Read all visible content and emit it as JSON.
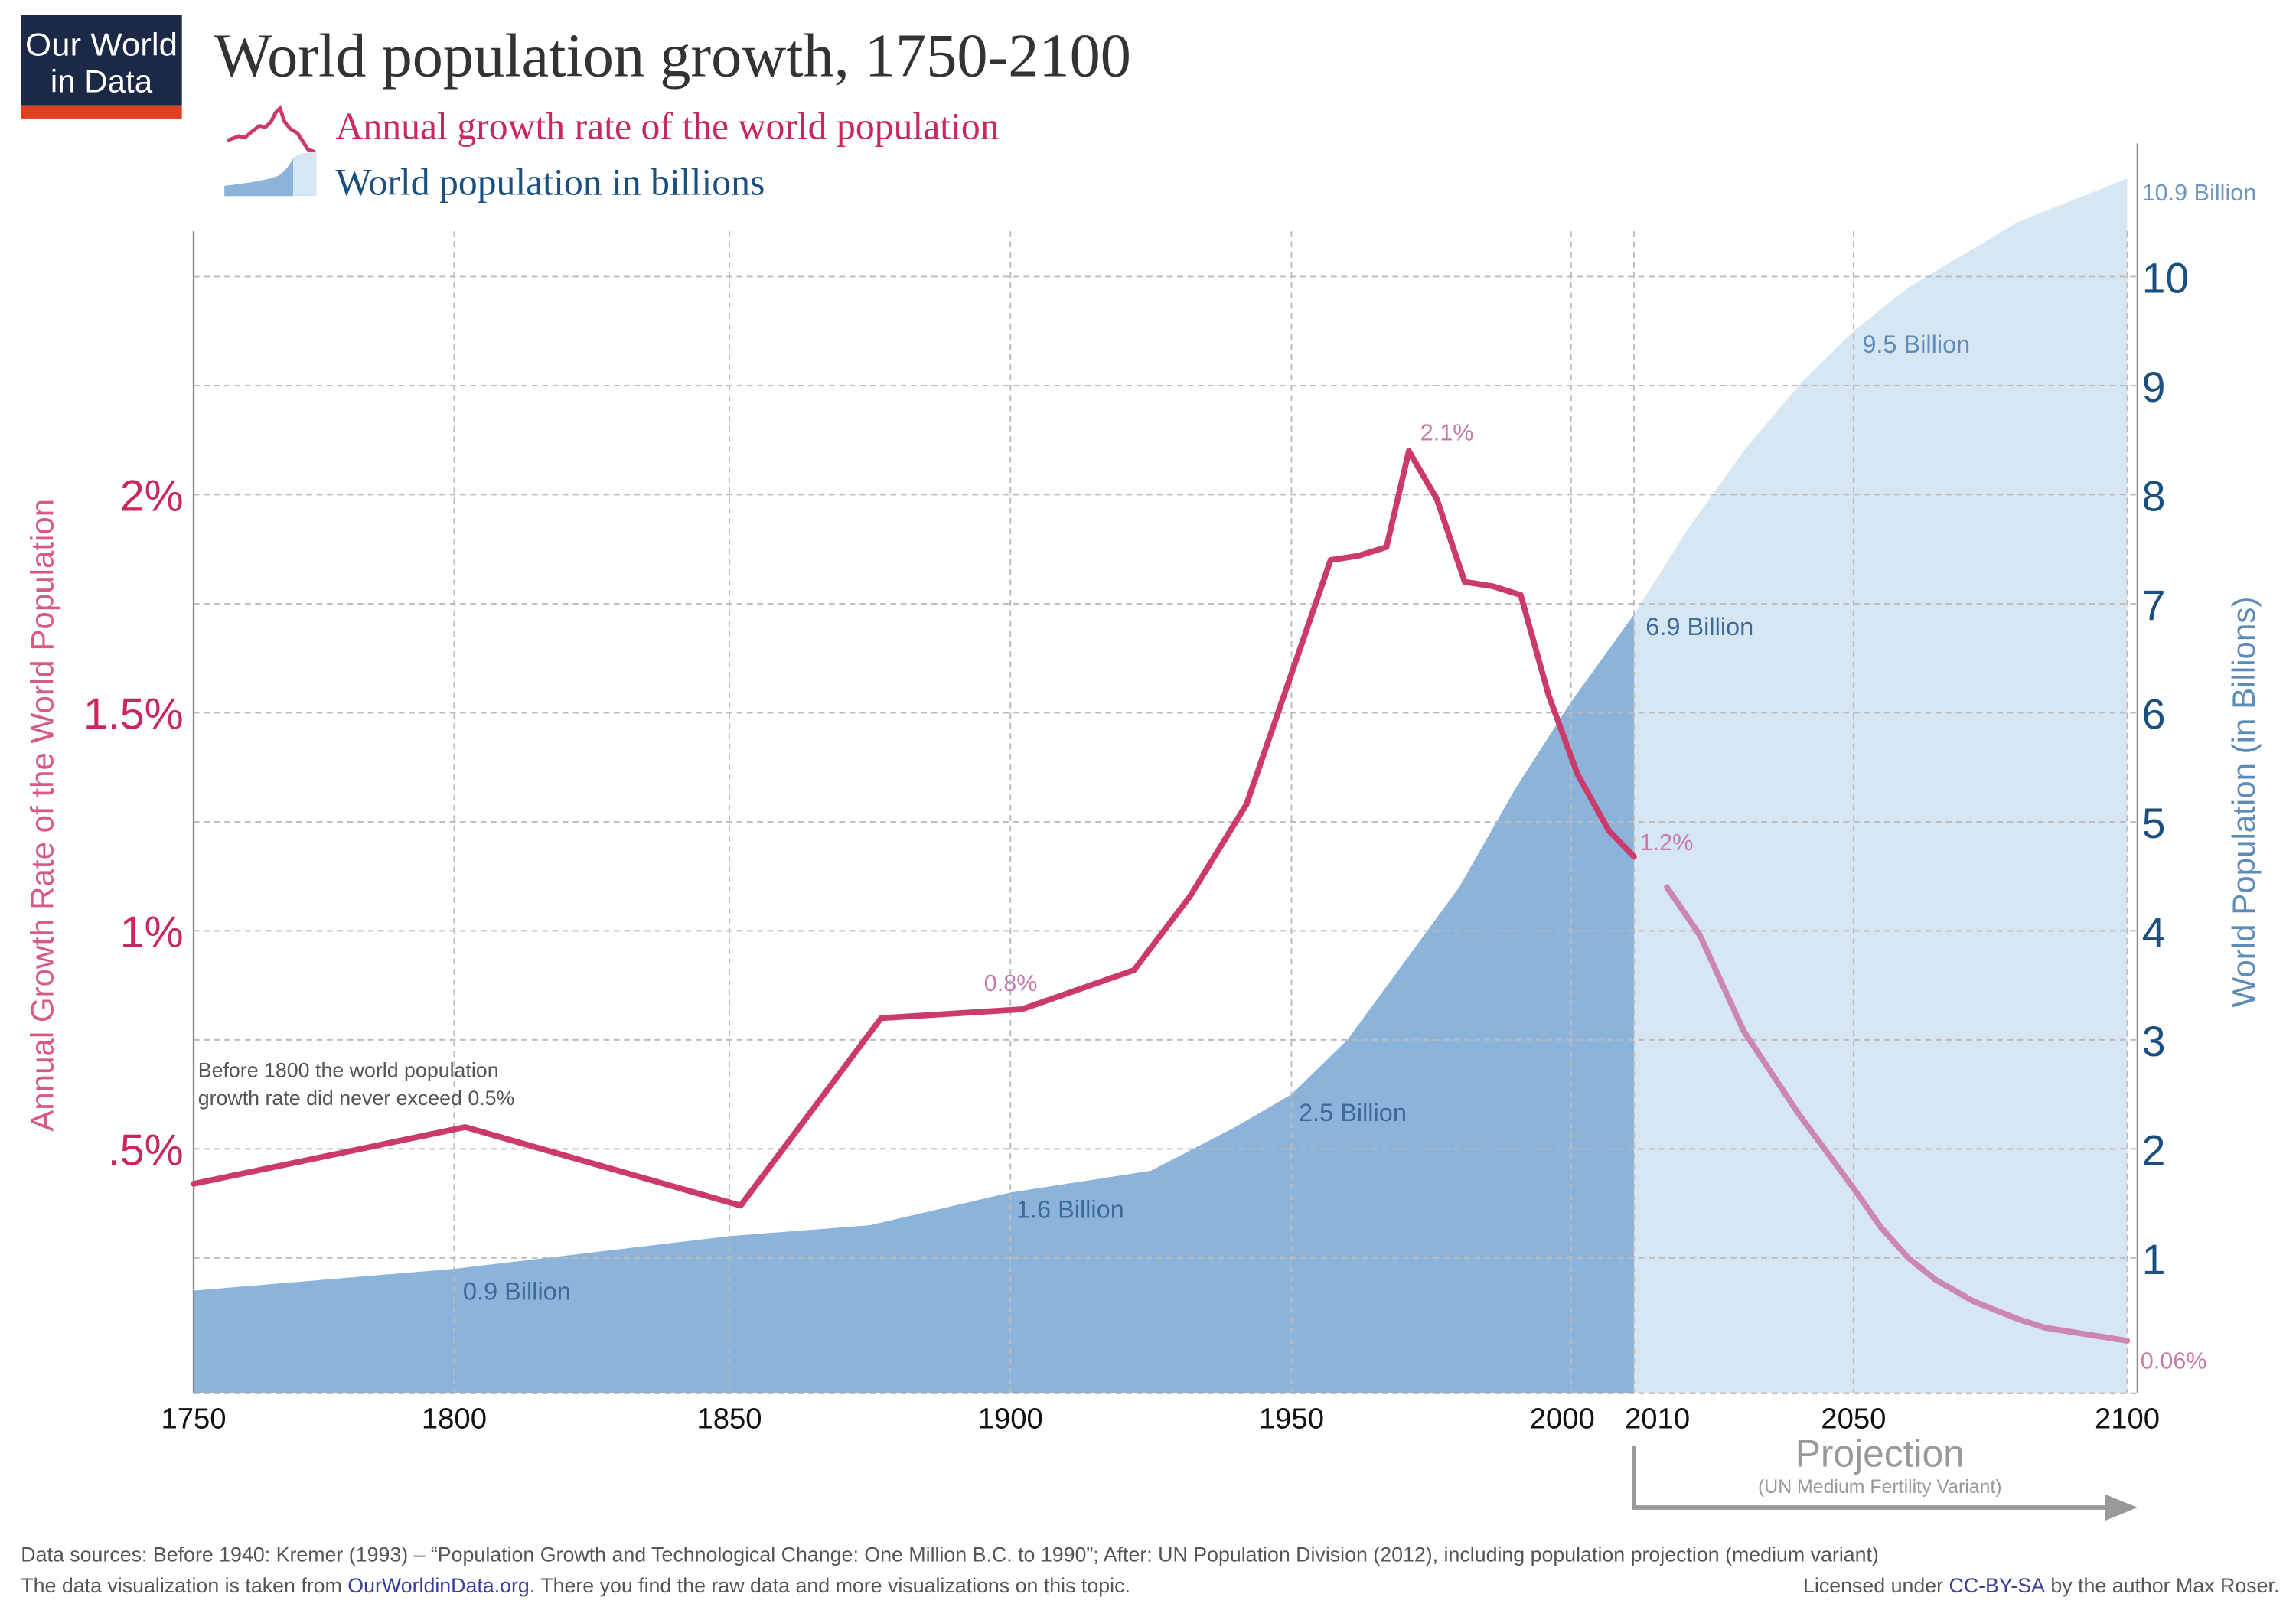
{
  "logo": {
    "line1": "Our World",
    "line2": "in Data"
  },
  "chart_data": {
    "type": "line+area",
    "title": "World population growth, 1750-2100",
    "legend": [
      {
        "label": "Annual growth rate of the world population",
        "color": "#c8285e"
      },
      {
        "label": "World population in billions",
        "color": "#1a4f80"
      }
    ],
    "legend_placement": "top-left",
    "ylabel_left": "Annual Growth Rate of the World Population",
    "ylabel_right": "World Population (in Billions)",
    "x_ticks": [
      "1750",
      "1800",
      "1850",
      "1900",
      "1950",
      "2000",
      "2010",
      "2050",
      "2100"
    ],
    "y_left_ticks": [
      {
        "v": 0.5,
        "label": ".5%"
      },
      {
        "v": 1,
        "label": "1%"
      },
      {
        "v": 1.5,
        "label": "1.5%"
      },
      {
        "v": 2,
        "label": "2%"
      }
    ],
    "y_right_ticks": [
      "1",
      "2",
      "3",
      "4",
      "5",
      "6",
      "7",
      "8",
      "9",
      "10"
    ],
    "xlim": [
      1750,
      2100
    ],
    "ylim_left": [
      0,
      2.5
    ],
    "ylim_right": [
      0,
      11
    ],
    "grid": true,
    "projection_start": 2010,
    "colors": {
      "growth_hist": "#cc3a6c",
      "growth_proj": "#cb86b6",
      "pop_hist": "#8cb4da",
      "pop_proj": "#d7e6f3",
      "left_axis": "#c8285e",
      "right_axis": "#1a4f80"
    },
    "series": [
      {
        "name": "Annual growth rate of the world population",
        "unit": "%",
        "x": [
          1750,
          1802,
          1852,
          1877,
          1902,
          1922,
          1932,
          1942,
          1957,
          1962,
          1967,
          1971,
          1976,
          1981,
          1986,
          1991,
          1996,
          2001,
          2006,
          2010
        ],
        "values": [
          0.42,
          0.55,
          0.37,
          0.8,
          0.82,
          0.91,
          1.08,
          1.29,
          1.85,
          1.86,
          1.88,
          2.1,
          1.99,
          1.8,
          1.79,
          1.77,
          1.54,
          1.36,
          1.23,
          1.17
        ]
      },
      {
        "name": "Annual growth rate of the world population (projection)",
        "unit": "%",
        "x": [
          2016,
          2022,
          2030,
          2040,
          2050,
          2055,
          2060,
          2065,
          2072,
          2080,
          2085,
          2090,
          2095,
          2100
        ],
        "values": [
          1.1,
          0.99,
          0.77,
          0.58,
          0.41,
          0.32,
          0.25,
          0.2,
          0.15,
          0.11,
          0.09,
          0.08,
          0.07,
          0.06
        ]
      },
      {
        "name": "World population in billions",
        "unit": "billion",
        "x": [
          1750,
          1800,
          1850,
          1875,
          1900,
          1925,
          1940,
          1950,
          1960,
          1970,
          1980,
          1990,
          2000,
          2010
        ],
        "values": [
          0.7,
          0.9,
          1.2,
          1.3,
          1.6,
          1.8,
          2.2,
          2.5,
          3.0,
          3.7,
          4.4,
          5.3,
          6.1,
          6.9
        ]
      },
      {
        "name": "World population in billions (projection)",
        "unit": "billion",
        "x": [
          2010,
          2020,
          2030,
          2040,
          2050,
          2060,
          2070,
          2080,
          2090,
          2100
        ],
        "values": [
          6.9,
          7.7,
          8.4,
          9.0,
          9.5,
          9.9,
          10.2,
          10.5,
          10.7,
          10.9
        ]
      }
    ],
    "annotations": {
      "note_line1": "Before 1800 the world population",
      "note_line2": "growth rate did never exceed 0.5%",
      "g_08": "0.8%",
      "g_21": "2.1%",
      "g_12": "1.2%",
      "g_006": "0.06%",
      "p_09": "0.9 Billion",
      "p_16": "1.6 Billion",
      "p_25": "2.5 Billion",
      "p_69": "6.9 Billion",
      "p_95": "9.5 Billion",
      "p_109": "10.9 Billion"
    },
    "projection": {
      "label": "Projection",
      "sublabel": "(UN Medium Fertility Variant)"
    }
  },
  "footer": {
    "sources": "Data sources:  Before 1940: Kremer (1993) – “Population Growth and Technological Change: One Million B.C. to 1990”; After: UN Population Division (2012), including population projection (medium variant)",
    "viz_prefix": "The data visualization is taken from ",
    "viz_link": "OurWorldinData.org",
    "viz_suffix": ". There you find the raw data and more visualizations on this topic.",
    "license_prefix": "Licensed under ",
    "license_link": "CC-BY-SA",
    "license_suffix": " by the author Max Roser."
  }
}
